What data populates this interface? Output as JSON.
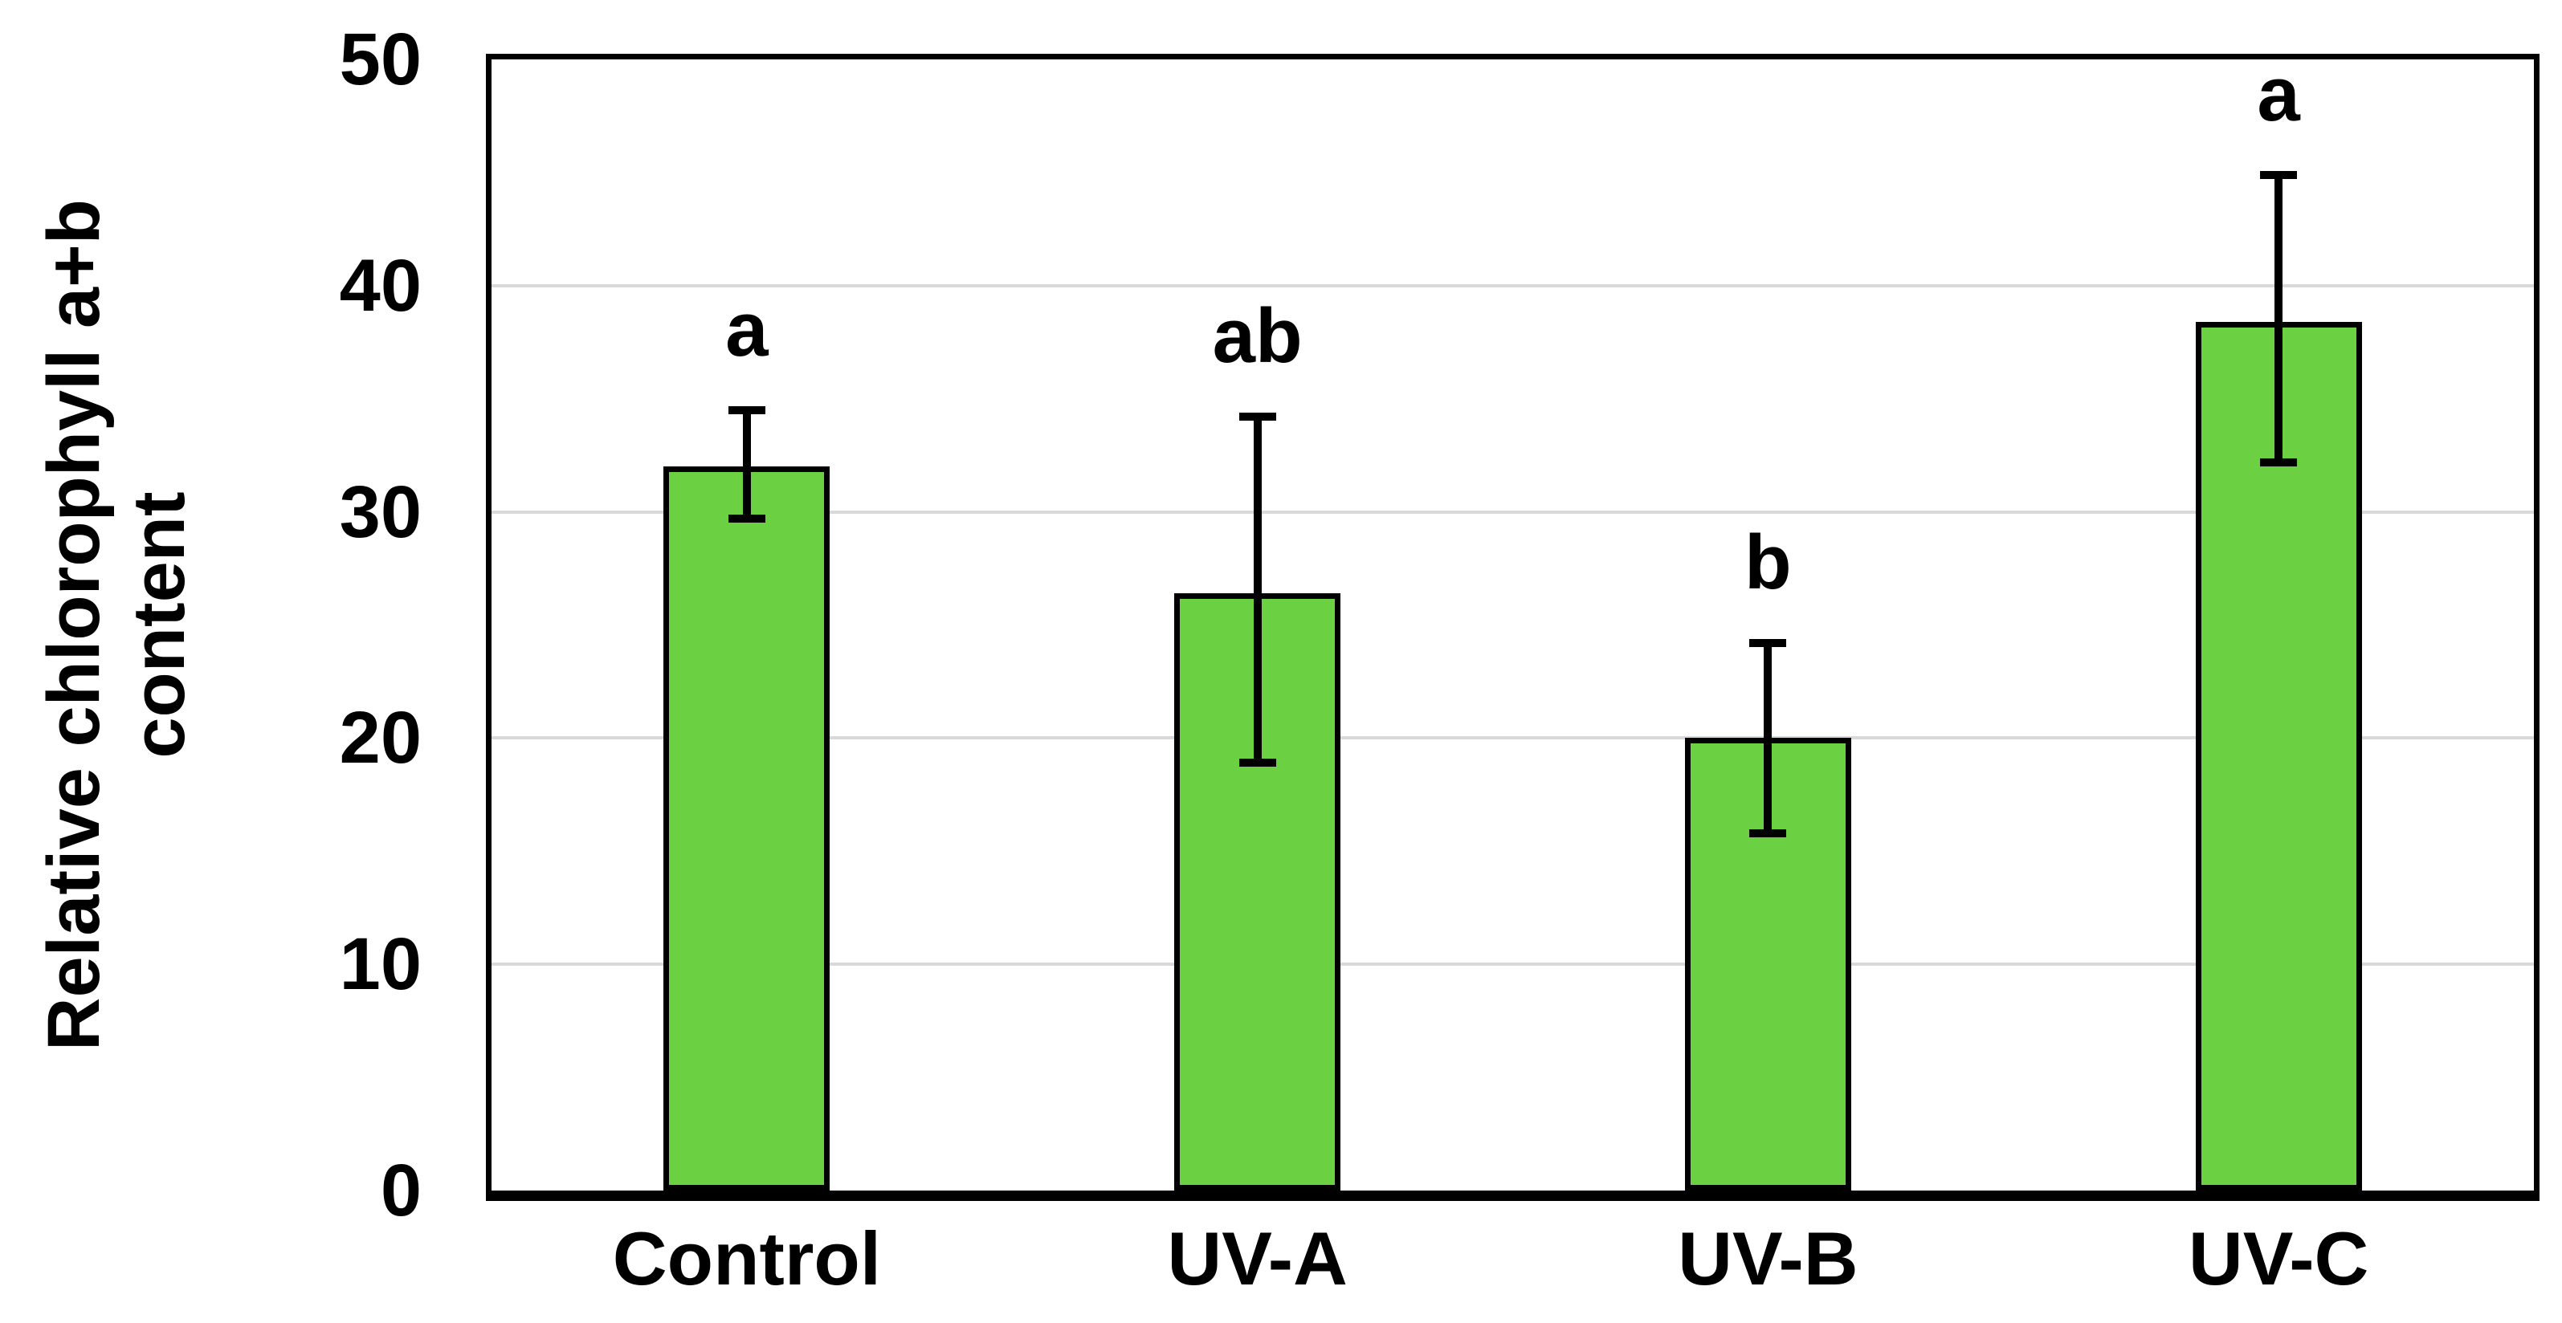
{
  "chart_data": {
    "type": "bar",
    "title": "",
    "ylabel_lines": [
      "Relative chlorophyll a+b",
      "content"
    ],
    "ylabel": "Relative chlorophyll a+b content",
    "xlabel": "",
    "categories": [
      "Control",
      "UV-A",
      "UV-B",
      "UV-C"
    ],
    "values": [
      32.0,
      26.4,
      20.0,
      38.4
    ],
    "error_low": [
      29.7,
      18.9,
      15.8,
      32.2
    ],
    "error_high": [
      34.5,
      34.2,
      24.2,
      44.9
    ],
    "sig_letters": [
      "a",
      "ab",
      "b",
      "a"
    ],
    "y_ticks": [
      0,
      10,
      20,
      30,
      40,
      50
    ],
    "ylim": [
      0,
      50
    ],
    "grid": "horizontal",
    "legend": "none",
    "colors": {
      "bar_fill": "#6BD143",
      "bar_border": "#000000",
      "error_bar": "#000000",
      "gridline": "#D9D9D9",
      "axis_border": "#000000",
      "background": "#FFFFFF",
      "text": "#000000"
    }
  }
}
